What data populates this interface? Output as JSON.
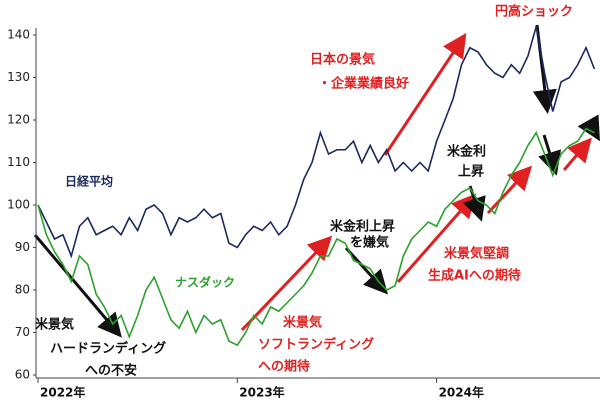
{
  "chart_data": {
    "type": "line",
    "x": [
      2022,
      2022.042,
      2022.083,
      2022.125,
      2022.167,
      2022.208,
      2022.25,
      2022.292,
      2022.333,
      2022.375,
      2022.417,
      2022.458,
      2022.5,
      2022.542,
      2022.583,
      2022.625,
      2022.667,
      2022.708,
      2022.75,
      2022.792,
      2022.833,
      2022.875,
      2022.917,
      2022.958,
      2023,
      2023.042,
      2023.083,
      2023.125,
      2023.167,
      2023.208,
      2023.25,
      2023.292,
      2023.333,
      2023.375,
      2023.417,
      2023.458,
      2023.5,
      2023.542,
      2023.583,
      2023.625,
      2023.667,
      2023.708,
      2023.75,
      2023.792,
      2023.833,
      2023.875,
      2023.917,
      2023.958,
      2024,
      2024.042,
      2024.083,
      2024.125,
      2024.167,
      2024.208,
      2024.25,
      2024.292,
      2024.333,
      2024.375,
      2024.417,
      2024.458,
      2024.5,
      2024.542,
      2024.583,
      2024.625,
      2024.667,
      2024.708,
      2024.75,
      2024.792
    ],
    "series": [
      {
        "name": "日経平均",
        "color": "#1a2a5e",
        "values": [
          100,
          96,
          92,
          93,
          88,
          95,
          97,
          93,
          94,
          95,
          93,
          97,
          94,
          99,
          100,
          98,
          93,
          97,
          96,
          97,
          99,
          97,
          98,
          91,
          90,
          93,
          95,
          94,
          96,
          93,
          95,
          100,
          106,
          110,
          117,
          112,
          113,
          113,
          115,
          110,
          114,
          110,
          113,
          108,
          110,
          108,
          110,
          108,
          115,
          120,
          125,
          133,
          137,
          136,
          133,
          131,
          130,
          133,
          131,
          135,
          142,
          131,
          122,
          129,
          130,
          133,
          137,
          132
        ]
      },
      {
        "name": "ナスダック",
        "color": "#2ca02c",
        "values": [
          100,
          93,
          89,
          86,
          82,
          88,
          86,
          79,
          76,
          72,
          74,
          69,
          74,
          80,
          83,
          78,
          73,
          71,
          75,
          70,
          74,
          72,
          73,
          68,
          67,
          70,
          74,
          72,
          76,
          75,
          77,
          79,
          81,
          84,
          88,
          88,
          92,
          91,
          87,
          86,
          85,
          82,
          80,
          81,
          88,
          92,
          94,
          96,
          95,
          99,
          101,
          103,
          104,
          101,
          100,
          98,
          103,
          107,
          110,
          114,
          117,
          112,
          107,
          112,
          114,
          115,
          118,
          117
        ]
      }
    ],
    "xlim": [
      2022,
      2024.82
    ],
    "xticks": [
      {
        "value": 2022,
        "label": "2022年"
      },
      {
        "value": 2023,
        "label": "2023年"
      },
      {
        "value": 2024,
        "label": "2024年"
      }
    ],
    "ylim": [
      60,
      140
    ],
    "yticks": [
      60,
      70,
      80,
      90,
      100,
      110,
      120,
      130,
      140
    ],
    "grid": false,
    "annotations": [
      {
        "lines": [
          "米景気",
          "ハードランディング",
          "への不安"
        ],
        "color": "#111111"
      },
      {
        "lines": [
          "米景気",
          "ソフトランディング",
          "への期待"
        ],
        "color": "#e02020"
      },
      {
        "lines": [
          "米金利上昇",
          "を嫌気"
        ],
        "color": "#111111"
      },
      {
        "lines": [
          "日本の景気",
          "・企業業績良好"
        ],
        "color": "#e02020"
      },
      {
        "lines": [
          "円高ショック"
        ],
        "color": "#e02020"
      },
      {
        "lines": [
          "米金利",
          "上昇"
        ],
        "color": "#111111"
      },
      {
        "lines": [
          "米景気堅調",
          "生成AIへの期待"
        ],
        "color": "#e02020"
      }
    ]
  }
}
